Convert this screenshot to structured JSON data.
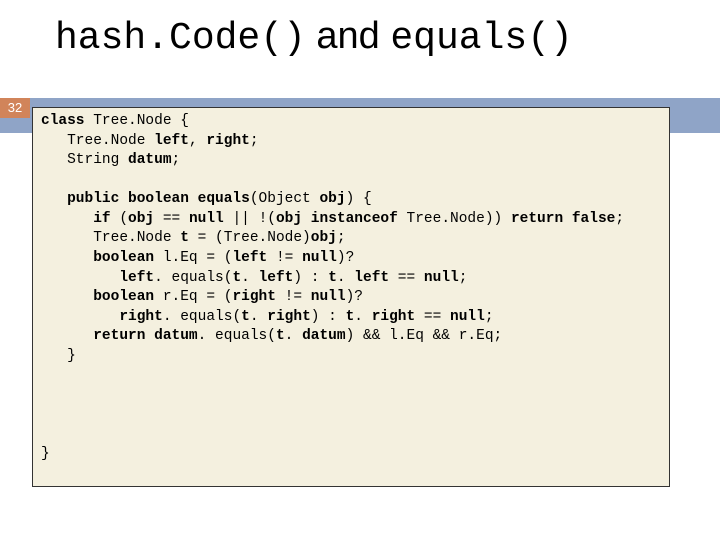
{
  "title": {
    "part1": "hash.Code()",
    "and": " and ",
    "part2": "equals()",
    "font_family_code": "Courier New",
    "font_family_and": "Arial",
    "font_size": 38
  },
  "slide_number": "32",
  "colors": {
    "blue_band": "#8fa4c7",
    "orange_box": "#d1845a",
    "code_bg": "#f4f0df",
    "code_border": "#333333",
    "page_bg": "#ffffff",
    "text": "#000000",
    "slidenum_text": "#ffffff"
  },
  "code": {
    "font_family": "Courier New",
    "font_size": 14.5,
    "line_height": 1.35,
    "lines": {
      "l1a": "class",
      "l1b": " Tree.Node {",
      "l2a": "   Tree.Node ",
      "l2b": "left",
      "l2c": ", ",
      "l2d": "right",
      "l2e": ";",
      "l3a": "   String ",
      "l3b": "datum",
      "l3c": ";",
      "l5a": "   public boolean equals",
      "l5b": "(Object ",
      "l5c": "obj",
      "l5d": ") {",
      "l6a": "      if",
      "l6b": " (",
      "l6c": "obj",
      "l6d": " == ",
      "l6e": "null",
      "l6f": " || !(",
      "l6g": "obj instanceof",
      "l6h": " Tree.Node)) ",
      "l6i": "return false",
      "l6j": ";",
      "l7a": "      Tree.Node ",
      "l7b": "t",
      "l7c": " = (Tree.Node)",
      "l7d": "obj",
      "l7e": ";",
      "l8a": "      boolean",
      "l8b": " l.Eq = (",
      "l8c": "left",
      "l8d": " != ",
      "l8e": "null",
      "l8f": ")?",
      "l9a": "         left",
      "l9b": ". equals(",
      "l9c": "t",
      "l9d": ". ",
      "l9e": "left",
      "l9f": ") : ",
      "l9g": "t",
      "l9h": ". ",
      "l9i": "left",
      "l9j": " == ",
      "l9k": "null",
      "l9l": ";",
      "l10a": "      boolean",
      "l10b": " r.Eq = (",
      "l10c": "right",
      "l10d": " != ",
      "l10e": "null",
      "l10f": ")?",
      "l11a": "         right",
      "l11b": ". equals(",
      "l11c": "t",
      "l11d": ". ",
      "l11e": "right",
      "l11f": ") : ",
      "l11g": "t",
      "l11h": ". ",
      "l11i": "right",
      "l11j": " == ",
      "l11k": "null",
      "l11l": ";",
      "l12a": "      return datum",
      "l12b": ". equals(",
      "l12c": "t",
      "l12d": ". ",
      "l12e": "datum",
      "l12f": ") && l.Eq && r.Eq;",
      "l13": "   }",
      "l_end": "}"
    }
  }
}
